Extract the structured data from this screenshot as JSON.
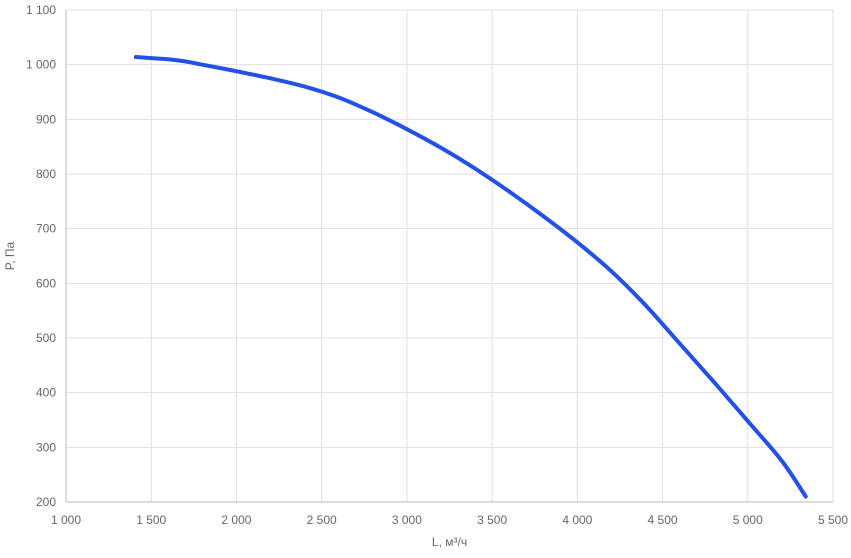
{
  "chart_data": {
    "type": "line",
    "title": "",
    "xlabel": "L, м³/ч",
    "ylabel": "P, Па",
    "xlim": [
      1000,
      5500
    ],
    "ylim": [
      200,
      1100
    ],
    "grid": true,
    "x_ticks": [
      1000,
      1500,
      2000,
      2500,
      3000,
      3500,
      4000,
      4500,
      5000,
      5500
    ],
    "x_tick_labels": [
      "1 000",
      "1 500",
      "2 000",
      "2 500",
      "3 000",
      "3 500",
      "4 000",
      "4 500",
      "5 000",
      "5 500"
    ],
    "y_ticks": [
      200,
      300,
      400,
      500,
      600,
      700,
      800,
      900,
      1000,
      1100
    ],
    "y_tick_labels": [
      "200",
      "300",
      "400",
      "500",
      "600",
      "700",
      "800",
      "900",
      "1 000",
      "1 100"
    ],
    "series": [
      {
        "color": "#2450e8",
        "x": [
          1410,
          1500,
          1600,
          1700,
          1800,
          2000,
          2200,
          2400,
          2600,
          2800,
          3000,
          3200,
          3400,
          3600,
          3800,
          4000,
          4200,
          4400,
          4600,
          4800,
          5000,
          5200,
          5340
        ],
        "y": [
          1014,
          1012,
          1010,
          1006,
          1000,
          988,
          975,
          960,
          940,
          913,
          882,
          848,
          810,
          768,
          723,
          675,
          622,
          560,
          490,
          420,
          348,
          275,
          210
        ]
      }
    ]
  }
}
